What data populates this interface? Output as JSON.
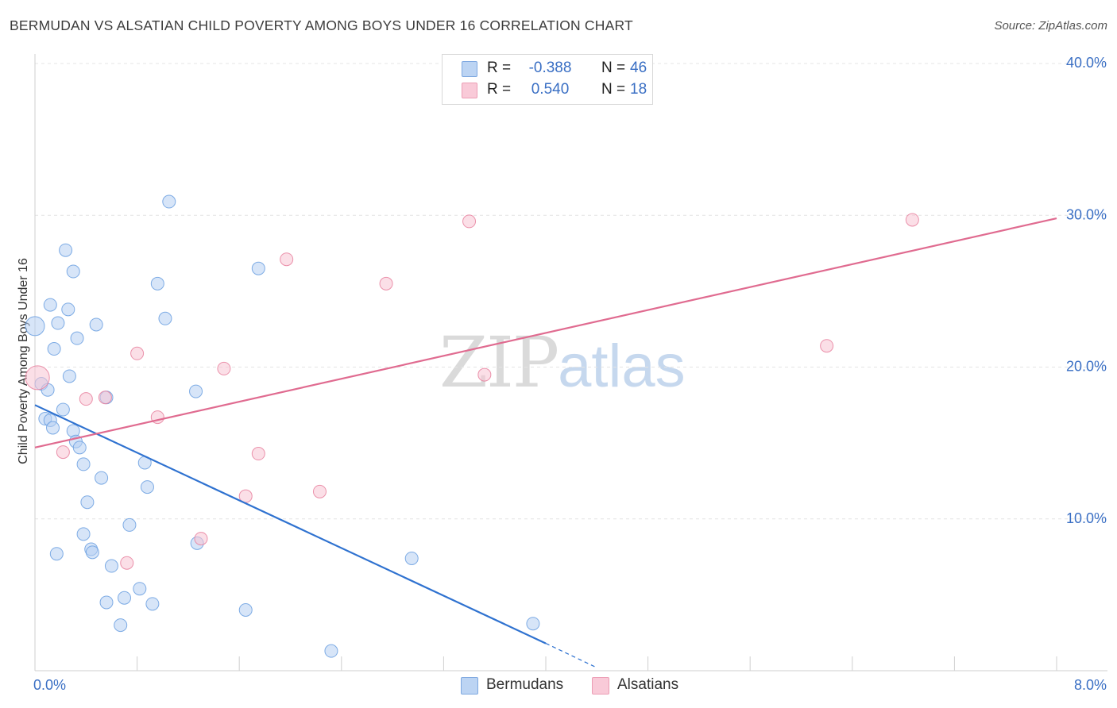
{
  "title": "BERMUDAN VS ALSATIAN CHILD POVERTY AMONG BOYS UNDER 16 CORRELATION CHART",
  "source": "Source: ZipAtlas.com",
  "watermark": {
    "zip": "ZIP",
    "atlas": "atlas"
  },
  "legend": {
    "rows": [
      {
        "r_label": "R =",
        "r_value": "-0.388",
        "n_label": "N =",
        "n_value": "46",
        "color": "#a9c8ef"
      },
      {
        "r_label": "R =",
        "r_value": "0.540",
        "n_label": "N =",
        "n_value": "18",
        "color": "#f5b8cb"
      }
    ]
  },
  "bottom_legend": [
    {
      "label": "Bermudans",
      "color": "#a9c8ef"
    },
    {
      "label": "Alsatians",
      "color": "#f5b8cb"
    }
  ],
  "chart_data": {
    "type": "scatter",
    "title": "BERMUDAN VS ALSATIAN CHILD POVERTY AMONG BOYS UNDER 16 CORRELATION CHART",
    "xlabel": "",
    "ylabel": "Child Poverty Among Boys Under 16",
    "xlim": [
      0,
      8
    ],
    "ylim": [
      0,
      40
    ],
    "x_tick_labels": [
      "0.0%",
      "8.0%"
    ],
    "y_ticks": [
      10,
      20,
      30,
      40
    ],
    "y_tick_labels": [
      "10.0%",
      "20.0%",
      "30.0%",
      "40.0%"
    ],
    "grid": true,
    "series": [
      {
        "name": "Bermudans",
        "color": "#6a9fe0",
        "fill": "#b6d0f2",
        "points": [
          [
            0.0,
            22.7
          ],
          [
            0.05,
            18.9
          ],
          [
            0.1,
            18.5
          ],
          [
            0.08,
            16.6
          ],
          [
            0.12,
            16.5
          ],
          [
            0.14,
            16.0
          ],
          [
            0.12,
            24.1
          ],
          [
            0.15,
            21.2
          ],
          [
            0.18,
            22.9
          ],
          [
            0.24,
            27.7
          ],
          [
            0.3,
            26.3
          ],
          [
            0.26,
            23.8
          ],
          [
            0.27,
            19.4
          ],
          [
            0.33,
            21.9
          ],
          [
            0.22,
            17.2
          ],
          [
            0.3,
            15.8
          ],
          [
            0.32,
            15.1
          ],
          [
            0.35,
            14.7
          ],
          [
            0.38,
            13.6
          ],
          [
            0.41,
            11.1
          ],
          [
            0.38,
            9.0
          ],
          [
            0.44,
            8.0
          ],
          [
            0.45,
            7.8
          ],
          [
            0.17,
            7.7
          ],
          [
            0.48,
            22.8
          ],
          [
            0.52,
            12.7
          ],
          [
            0.56,
            18.0
          ],
          [
            0.56,
            4.5
          ],
          [
            0.6,
            6.9
          ],
          [
            0.67,
            3.0
          ],
          [
            0.7,
            4.8
          ],
          [
            0.74,
            9.6
          ],
          [
            0.82,
            5.4
          ],
          [
            0.86,
            13.7
          ],
          [
            0.88,
            12.1
          ],
          [
            0.92,
            4.4
          ],
          [
            0.96,
            25.5
          ],
          [
            1.02,
            23.2
          ],
          [
            1.05,
            30.9
          ],
          [
            1.26,
            18.4
          ],
          [
            1.27,
            8.4
          ],
          [
            1.65,
            4.0
          ],
          [
            1.75,
            26.5
          ],
          [
            2.32,
            1.3
          ],
          [
            2.95,
            7.4
          ],
          [
            3.9,
            3.1
          ]
        ],
        "trend": {
          "x": [
            0.0,
            4.0
          ],
          "y": [
            17.5,
            1.8
          ]
        },
        "trend_dashed": {
          "x": [
            4.0,
            4.4
          ],
          "y": [
            1.8,
            0.2
          ]
        }
      },
      {
        "name": "Alsatians",
        "color": "#e8809e",
        "fill": "#f7c4d3",
        "points": [
          [
            0.02,
            19.3
          ],
          [
            0.22,
            14.4
          ],
          [
            0.4,
            17.9
          ],
          [
            0.55,
            18.0
          ],
          [
            0.72,
            7.1
          ],
          [
            0.8,
            20.9
          ],
          [
            0.96,
            16.7
          ],
          [
            1.3,
            8.7
          ],
          [
            1.48,
            19.9
          ],
          [
            1.65,
            11.5
          ],
          [
            1.75,
            14.3
          ],
          [
            1.97,
            27.1
          ],
          [
            2.23,
            11.8
          ],
          [
            2.75,
            25.5
          ],
          [
            3.4,
            29.6
          ],
          [
            3.52,
            19.5
          ],
          [
            6.2,
            21.4
          ],
          [
            6.87,
            29.7
          ]
        ],
        "trend": {
          "x": [
            0.0,
            8.0
          ],
          "y": [
            14.7,
            29.8
          ]
        }
      }
    ]
  }
}
